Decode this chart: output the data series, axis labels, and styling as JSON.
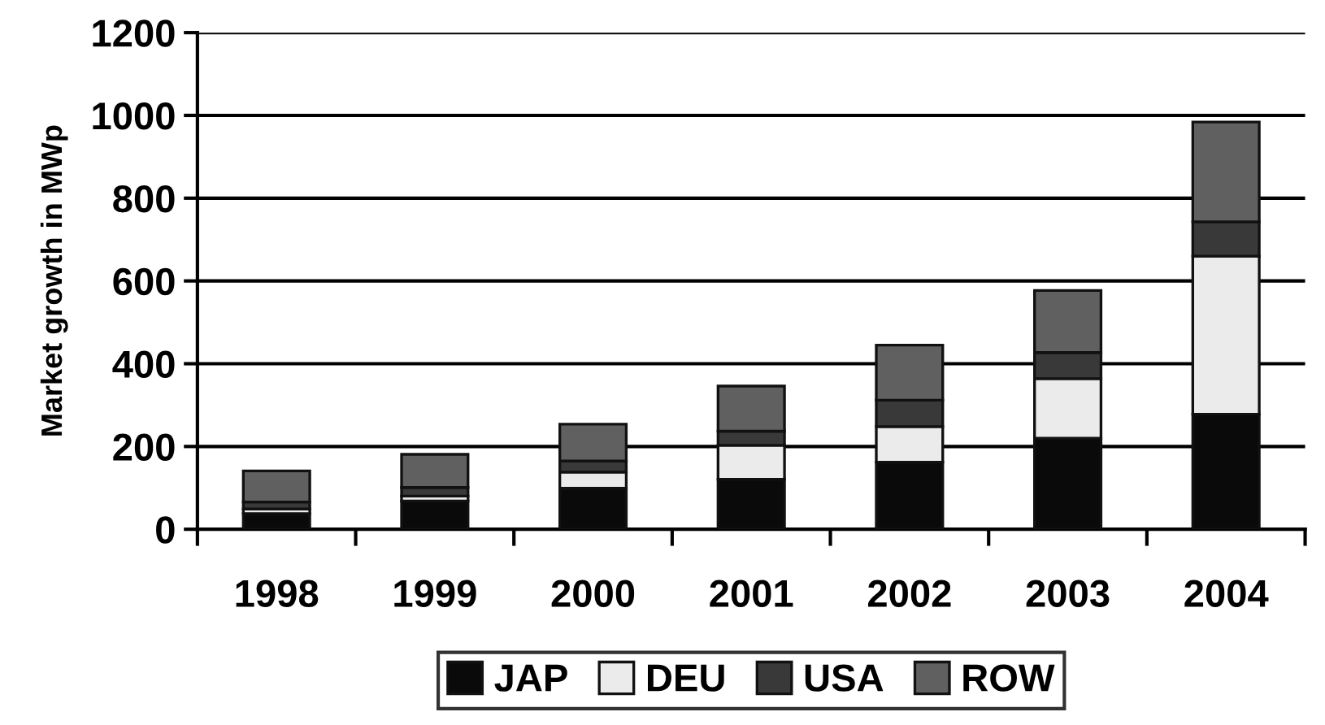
{
  "chart_data": {
    "type": "bar",
    "stacked": true,
    "ylabel": "Market growth in MWp",
    "categories": [
      "1998",
      "1999",
      "2000",
      "2001",
      "2002",
      "2003",
      "2004"
    ],
    "series": [
      {
        "name": "JAP",
        "color": "#0a0a0a",
        "values": [
          38,
          68,
          99,
          121,
          162,
          220,
          278
        ]
      },
      {
        "name": "DEU",
        "color": "#ebebeb",
        "values": [
          11,
          12,
          39,
          82,
          86,
          144,
          382
        ]
      },
      {
        "name": "USA",
        "color": "#393939",
        "values": [
          17,
          21,
          27,
          34,
          64,
          63,
          83
        ]
      },
      {
        "name": "ROW",
        "color": "#606060",
        "values": [
          75,
          80,
          89,
          109,
          133,
          150,
          241
        ]
      }
    ],
    "ylim": [
      0,
      1200
    ],
    "yticks": [
      0,
      200,
      400,
      600,
      800,
      1000,
      1200
    ],
    "grid": "y",
    "legend": "bottom"
  }
}
